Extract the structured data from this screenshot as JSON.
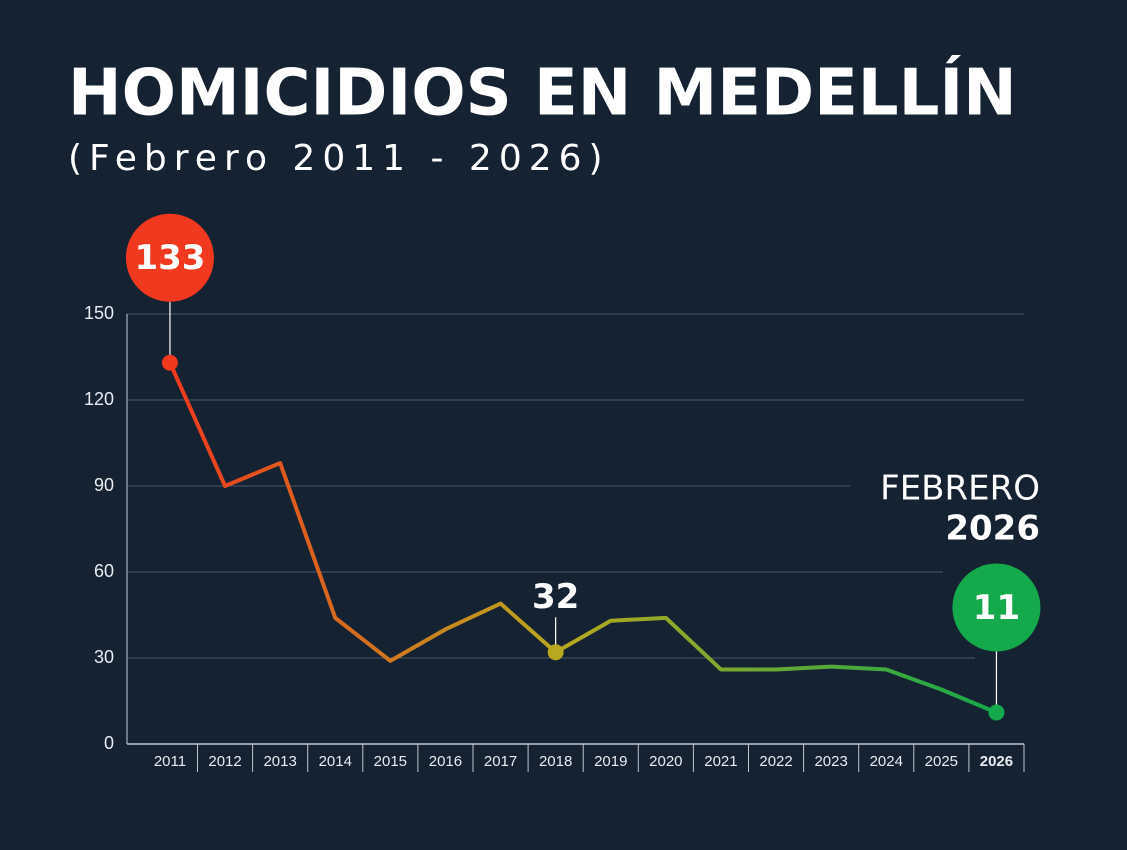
{
  "chart_data": {
    "type": "line",
    "title": "HOMICIDIOS EN MEDELLÍN",
    "subtitle": "(Febrero 2011 - 2026)",
    "annotation": [
      "FEBRERO",
      "2026"
    ],
    "categories": [
      "2011",
      "2012",
      "2013",
      "2014",
      "2015",
      "2016",
      "2017",
      "2018",
      "2019",
      "2020",
      "2021",
      "2022",
      "2023",
      "2024",
      "2025",
      "2026"
    ],
    "values": [
      133,
      90,
      98,
      44,
      29,
      40,
      49,
      32,
      43,
      44,
      26,
      26,
      27,
      26,
      19,
      11
    ],
    "colors": [
      "#f0391e",
      "#b8a81f",
      "#14a94a"
    ],
    "ylim": [
      0,
      150
    ],
    "yticks": [
      0,
      30,
      60,
      90,
      120,
      150
    ],
    "grid": true
  }
}
